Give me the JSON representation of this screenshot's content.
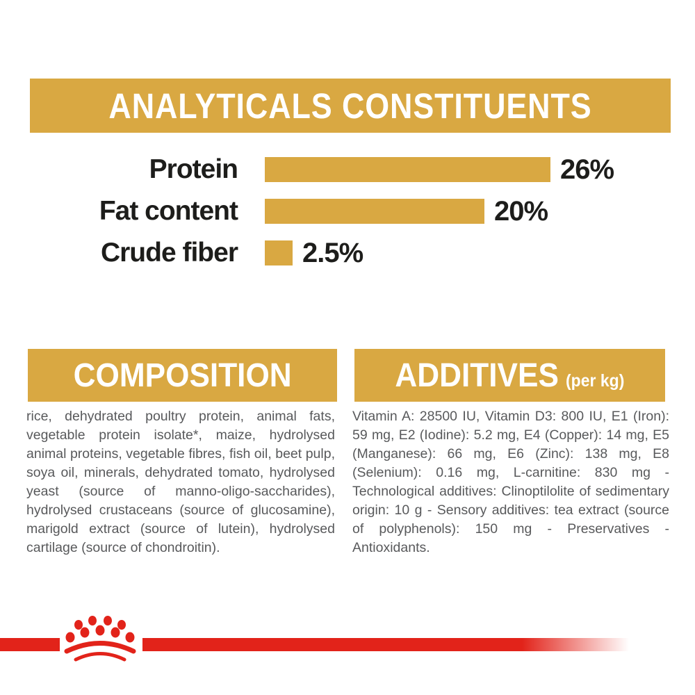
{
  "colors": {
    "gold": "#d9a842",
    "red": "#e2231a",
    "banner_text": "#ffffff",
    "chart_text": "#1d1d1b",
    "body_text": "#58595b"
  },
  "analytical_banner": {
    "title": "ANALYTICALS CONSTITUENTS"
  },
  "chart_data": {
    "type": "bar",
    "orientation": "horizontal",
    "title": "ANALYTICALS CONSTITUENTS",
    "categories": [
      "Protein",
      "Fat content",
      "Crude fiber"
    ],
    "values": [
      26,
      20,
      2.5
    ],
    "value_labels": [
      "26%",
      "20%",
      "2.5%"
    ],
    "unit": "%",
    "bar_color": "#d9a842",
    "xlim": [
      0,
      30
    ],
    "grid": false,
    "legend": false
  },
  "composition": {
    "title": "COMPOSITION",
    "text": "rice, dehydrated poultry protein, animal fats, vegetable protein isolate*, maize, hydrolysed animal proteins, vegetable fibres, fish oil, beet pulp, soya oil, minerals, dehydrated tomato, hydrolysed yeast (source of manno-oligo-saccharides), hydrolysed crustaceans (source of glucosamine), marigold extract (source of lutein), hydrolysed cartilage (source of chondroitin)."
  },
  "additives": {
    "title": "ADDITIVES",
    "title_suffix": "(per kg)",
    "text": "Vitamin A: 28500 IU, Vitamin D3: 800 IU, E1 (Iron): 59 mg, E2 (Iodine): 5.2 mg, E4 (Copper): 14 mg, E5 (Manganese): 66 mg, E6 (Zinc): 138 mg, E8 (Selenium): 0.16 mg, L-carnitine: 830 mg - Technological additives: Clinoptilolite of sedimentary origin: 10 g - Sensory additives: tea extract (source of polyphenols): 150 mg - Preservatives - Antioxidants."
  },
  "footer": {
    "logo": "royal-canin-crown"
  }
}
